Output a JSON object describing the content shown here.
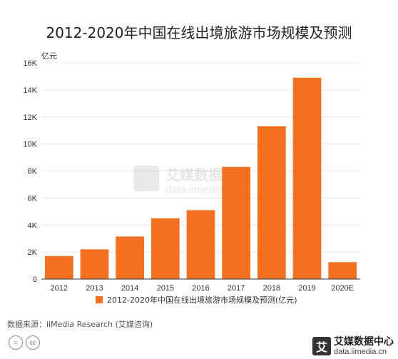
{
  "title": "2012-2020年中国在线出境旅游市场规模及预测",
  "source": "数据来源：iiMedia Research (艾媒咨询)",
  "watermark": {
    "name": "艾媒数据中心",
    "url": "data.iimedia.cn"
  },
  "brand": {
    "logo": "艾",
    "name": "艾媒数据中心",
    "url": "data.iimedia.cn"
  },
  "license_icons": [
    "equals-icon",
    "cc-icon"
  ],
  "colors": {
    "bar": "#F37021",
    "grid": "#E6E6E6",
    "axis": "#333333"
  },
  "chart_data": {
    "type": "bar",
    "title": "2012-2020年中国在线出境旅游市场规模及预测",
    "ylabel": "亿元",
    "xlabel": "",
    "categories": [
      "2012",
      "2013",
      "2014",
      "2015",
      "2016",
      "2017",
      "2018",
      "2019",
      "2020E"
    ],
    "series": [
      {
        "name": "2012-2020年中国在线出境旅游市场规模及预测(亿元)",
        "values": [
          1700,
          2200,
          3150,
          4500,
          5100,
          8300,
          11300,
          14900,
          1250
        ]
      }
    ],
    "ylim": [
      0,
      16000
    ],
    "yticks": [
      0,
      2000,
      4000,
      6000,
      8000,
      10000,
      12000,
      14000,
      16000
    ],
    "ytick_labels": [
      "0",
      "2K",
      "4K",
      "6K",
      "8K",
      "10K",
      "12K",
      "14K",
      "16K"
    ],
    "grid": true,
    "legend_position": "bottom"
  }
}
